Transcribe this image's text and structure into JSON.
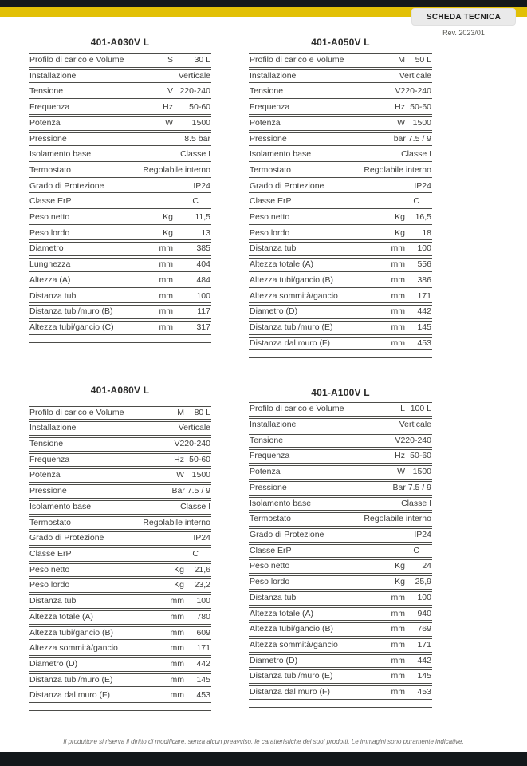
{
  "header": {
    "badge": "SCHEDA TECNICA",
    "revision": "Rev. 2023/01"
  },
  "colors": {
    "accent_yellow": "#e2c006",
    "bar_black": "#13181b",
    "badge_bg": "#eaeaea",
    "text": "#3e3e3c",
    "line": "#4c4c49"
  },
  "tables": [
    {
      "title": "401-A030V L",
      "rows": [
        {
          "label": "Profilo di carico e Volume",
          "mid": "S",
          "end": "30 L"
        },
        {
          "label": "Installazione",
          "mid": "",
          "end": "Verticale"
        },
        {
          "label": "Tensione",
          "mid": "V",
          "end": "220-240"
        },
        {
          "label": "Frequenza",
          "mid": "Hz",
          "end": "50-60"
        },
        {
          "label": "Potenza",
          "mid": "W",
          "end": "1500"
        },
        {
          "label": "Pressione",
          "mid": "",
          "end": "8.5 bar"
        },
        {
          "label": "Isolamento base",
          "mid": "",
          "end": "Classe I"
        },
        {
          "label": "Termostato",
          "mid": "",
          "end": "Regolabile interno"
        },
        {
          "label": "Grado di Protezione",
          "mid": "",
          "end": "IP24"
        },
        {
          "label": "Classe ErP",
          "mid": "",
          "end": "C"
        },
        {
          "label": "Peso netto",
          "mid": "Kg",
          "end": "11,5"
        },
        {
          "label": "Peso lordo",
          "mid": "Kg",
          "end": "13"
        },
        {
          "label": "Diametro",
          "mid": "mm",
          "end": "385"
        },
        {
          "label": "Lunghezza",
          "mid": "mm",
          "end": "404"
        },
        {
          "label": "Altezza (A)",
          "mid": "mm",
          "end": "484"
        },
        {
          "label": "Distanza tubi",
          "mid": "mm",
          "end": "100"
        },
        {
          "label": "Distanza tubi/muro (B)",
          "mid": "mm",
          "end": "117"
        },
        {
          "label": "Altezza tubi/gancio (C)",
          "mid": "mm",
          "end": "317"
        }
      ]
    },
    {
      "title": "401-A050V L",
      "rows": [
        {
          "label": "Profilo di carico e Volume",
          "mid": "M",
          "end": "50 L"
        },
        {
          "label": "Installazione",
          "mid": "",
          "end": "Verticale"
        },
        {
          "label": "Tensione",
          "mid": "V",
          "end": "220-240"
        },
        {
          "label": "Frequenza",
          "mid": "Hz",
          "end": "50-60"
        },
        {
          "label": "Potenza",
          "mid": "W",
          "end": "1500"
        },
        {
          "label": "Pressione",
          "mid": "",
          "end": "bar 7.5 / 9"
        },
        {
          "label": "Isolamento base",
          "mid": "",
          "end": "Classe I"
        },
        {
          "label": "Termostato",
          "mid": "",
          "end": "Regolabile interno"
        },
        {
          "label": "Grado di Protezione",
          "mid": "",
          "end": "IP24"
        },
        {
          "label": "Classe ErP",
          "mid": "",
          "end": "C"
        },
        {
          "label": "Peso netto",
          "mid": "Kg",
          "end": "16,5"
        },
        {
          "label": "Peso lordo",
          "mid": "Kg",
          "end": "18"
        },
        {
          "label": "Distanza tubi",
          "mid": "mm",
          "end": "100"
        },
        {
          "label": "Altezza totale (A)",
          "mid": "mm",
          "end": "556"
        },
        {
          "label": "Altezza tubi/gancio (B)",
          "mid": "mm",
          "end": "386"
        },
        {
          "label": "Altezza sommità/gancio",
          "mid": "mm",
          "end": "171"
        },
        {
          "label": "Diametro (D)",
          "mid": "mm",
          "end": "442"
        },
        {
          "label": "Distanza tubi/muro (E)",
          "mid": "mm",
          "end": "145"
        },
        {
          "label": "Distanza dal muro (F)",
          "mid": "mm",
          "end": "453"
        }
      ]
    },
    {
      "title": "401-A080V L",
      "rows": [
        {
          "label": "Profilo di carico e Volume",
          "mid": "M",
          "end": "80 L"
        },
        {
          "label": "Installazione",
          "mid": "",
          "end": "Verticale"
        },
        {
          "label": "Tensione",
          "mid": "V",
          "end": "220-240"
        },
        {
          "label": "Frequenza",
          "mid": "Hz",
          "end": "50-60"
        },
        {
          "label": "Potenza",
          "mid": "W",
          "end": "1500"
        },
        {
          "label": "Pressione",
          "mid": "",
          "end": "Bar 7.5 / 9"
        },
        {
          "label": "Isolamento base",
          "mid": "",
          "end": "Classe I"
        },
        {
          "label": "Termostato",
          "mid": "",
          "end": "Regolabile interno"
        },
        {
          "label": "Grado di Protezione",
          "mid": "",
          "end": "IP24"
        },
        {
          "label": "Classe ErP",
          "mid": "",
          "end": "C"
        },
        {
          "label": "Peso netto",
          "mid": "Kg",
          "end": "21,6"
        },
        {
          "label": "Peso lordo",
          "mid": "Kg",
          "end": "23,2"
        },
        {
          "label": "Distanza tubi",
          "mid": "mm",
          "end": "100"
        },
        {
          "label": "Altezza totale (A)",
          "mid": "mm",
          "end": "780"
        },
        {
          "label": "Altezza tubi/gancio (B)",
          "mid": "mm",
          "end": "609"
        },
        {
          "label": "Altezza sommità/gancio",
          "mid": "mm",
          "end": "171"
        },
        {
          "label": "Diametro (D)",
          "mid": "mm",
          "end": "442"
        },
        {
          "label": "Distanza tubi/muro (E)",
          "mid": "mm",
          "end": "145"
        },
        {
          "label": "Distanza dal muro (F)",
          "mid": "mm",
          "end": "453"
        }
      ]
    },
    {
      "title": "401-A100V L",
      "rows": [
        {
          "label": "Profilo di carico e Volume",
          "mid": "L",
          "end": "100 L"
        },
        {
          "label": "Installazione",
          "mid": "",
          "end": "Verticale"
        },
        {
          "label": "Tensione",
          "mid": "V",
          "end": "220-240"
        },
        {
          "label": "Frequenza",
          "mid": "Hz",
          "end": "50-60"
        },
        {
          "label": "Potenza",
          "mid": "W",
          "end": "1500"
        },
        {
          "label": "Pressione",
          "mid": "",
          "end": "Bar 7.5 / 9"
        },
        {
          "label": "Isolamento base",
          "mid": "",
          "end": "Classe I"
        },
        {
          "label": "Termostato",
          "mid": "",
          "end": "Regolabile interno"
        },
        {
          "label": "Grado di Protezione",
          "mid": "",
          "end": "IP24"
        },
        {
          "label": "Classe ErP",
          "mid": "",
          "end": "C"
        },
        {
          "label": "Peso netto",
          "mid": "Kg",
          "end": "24"
        },
        {
          "label": "Peso lordo",
          "mid": "Kg",
          "end": "25,9"
        },
        {
          "label": "Distanza tubi",
          "mid": "mm",
          "end": "100"
        },
        {
          "label": "Altezza totale (A)",
          "mid": "mm",
          "end": "940"
        },
        {
          "label": "Altezza tubi/gancio (B)",
          "mid": "mm",
          "end": "769"
        },
        {
          "label": "Altezza sommità/gancio",
          "mid": "mm",
          "end": "171"
        },
        {
          "label": "Diametro (D)",
          "mid": "mm",
          "end": "442"
        },
        {
          "label": "Distanza tubi/muro (E)",
          "mid": "mm",
          "end": "145"
        },
        {
          "label": "Distanza dal muro (F)",
          "mid": "mm",
          "end": "453"
        }
      ]
    }
  ],
  "footer": {
    "note": "Il produttore si riserva il diritto di modificare, senza alcun preavviso, le caratteristiche dei suoi prodotti. Le immagini sono puramente indicative."
  }
}
